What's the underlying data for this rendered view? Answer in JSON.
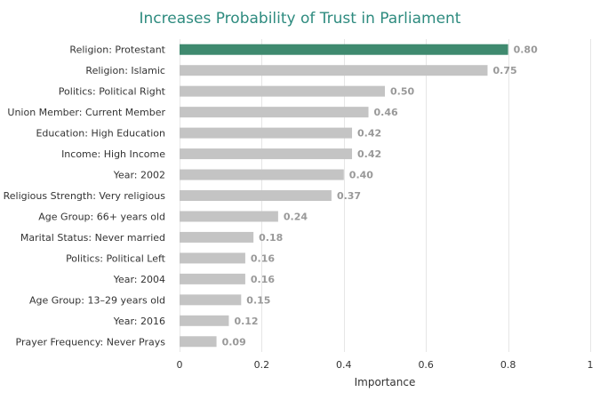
{
  "chart_data": {
    "type": "bar",
    "orientation": "horizontal",
    "title": "Increases Probability of Trust in Parliament",
    "xlabel": "Importance",
    "ylabel": "",
    "xlim": [
      0,
      1
    ],
    "xticks": [
      0,
      0.2,
      0.4,
      0.6,
      0.8,
      1
    ],
    "xtick_labels": [
      "0",
      "0.2",
      "0.4",
      "0.6",
      "0.8",
      "1"
    ],
    "grid": true,
    "categories": [
      "Religion: Protestant",
      "Religion: Islamic",
      "Politics: Political Right",
      "Union Member: Current Member",
      "Education: High Education",
      "Income: High Income",
      "Year: 2002",
      "Religious Strength: Very religious",
      "Age Group: 66+ years old",
      "Marital Status: Never married",
      "Politics: Political Left",
      "Year: 2004",
      "Age Group: 13–29 years old",
      "Year: 2016",
      "Prayer Frequency: Never Prays"
    ],
    "values": [
      0.8,
      0.75,
      0.5,
      0.46,
      0.42,
      0.42,
      0.4,
      0.37,
      0.24,
      0.18,
      0.16,
      0.16,
      0.15,
      0.12,
      0.09
    ],
    "value_labels": [
      "0.80",
      "0.75",
      "0.50",
      "0.46",
      "0.42",
      "0.42",
      "0.40",
      "0.37",
      "0.24",
      "0.18",
      "0.16",
      "0.16",
      "0.15",
      "0.12",
      "0.09"
    ],
    "colors": {
      "highlight": "#3f8a6f",
      "default": "#c4c4c4",
      "title": "#2e8b7f"
    },
    "highlight_index": 0
  }
}
